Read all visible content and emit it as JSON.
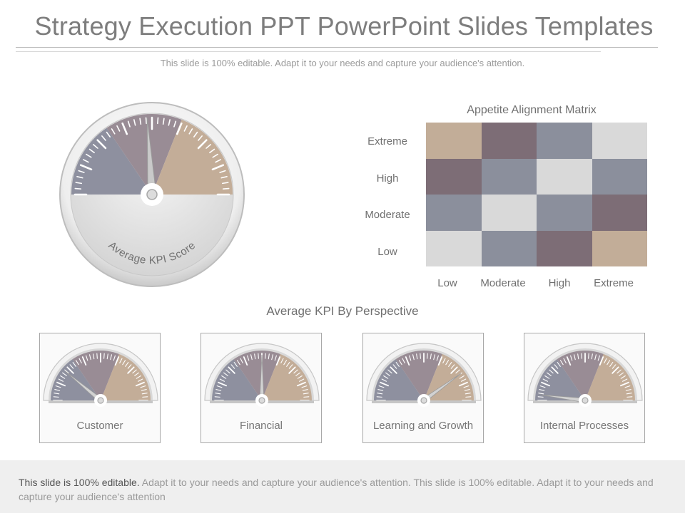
{
  "header": {
    "title": "Strategy Execution PPT PowerPoint Slides Templates",
    "subtitle": "This slide is 100% editable. Adapt it to your needs and capture your audience's attention."
  },
  "main_gauge": {
    "label": "Average KPI Score",
    "needle_value": 0.48,
    "colors": {
      "left": "#8e909f",
      "center": "#998c95",
      "right": "#c3ad98",
      "face": "#e3e3e3"
    }
  },
  "matrix": {
    "title": "Appetite Alignment Matrix",
    "row_labels": [
      "Extreme",
      "High",
      "Moderate",
      "Low"
    ],
    "col_labels": [
      "Low",
      "Moderate",
      "High",
      "Extreme"
    ],
    "colors": {
      "tan": "#c2ad98",
      "mauve": "#7d6d76",
      "slate": "#8b8f9c",
      "light": "#d9d9d9"
    },
    "cells": [
      [
        "tan",
        "mauve",
        "slate",
        "light"
      ],
      [
        "mauve",
        "slate",
        "light",
        "slate"
      ],
      [
        "slate",
        "light",
        "slate",
        "mauve"
      ],
      [
        "light",
        "slate",
        "mauve",
        "tan"
      ]
    ]
  },
  "perspective": {
    "title": "Average KPI By Perspective",
    "items": [
      {
        "label": "Customer",
        "needle_value": 0.22
      },
      {
        "label": "Financial",
        "needle_value": 0.5
      },
      {
        "label": "Learning and Growth",
        "needle_value": 0.8
      },
      {
        "label": "Internal  Processes",
        "needle_value": 0.04
      }
    ]
  },
  "footer": {
    "strong": "This slide is 100% editable.",
    "rest": " Adapt it to your needs and capture your audience's attention. This slide is 100% editable. Adapt it to your needs and capture your audience's attention"
  }
}
